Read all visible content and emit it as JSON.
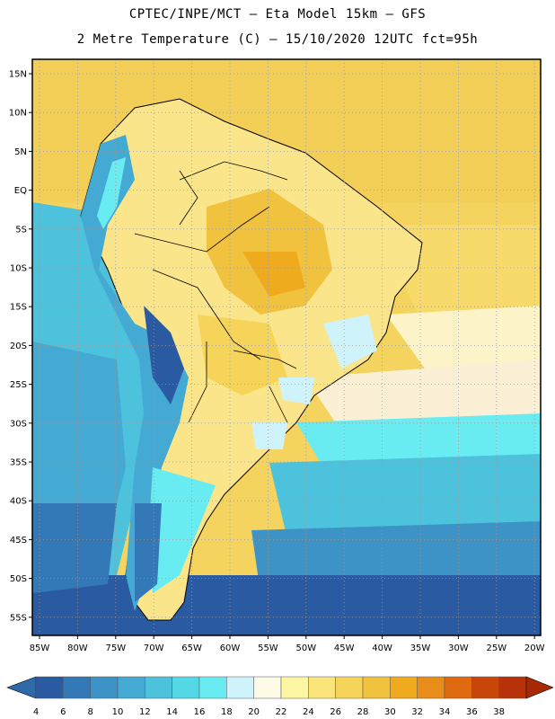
{
  "header": {
    "line1": "CPTEC/INPE/MCT –  Eta Model 15km – GFS",
    "line2": "2 Metre Temperature (C) – 15/10/2020 12UTC fct=95h"
  },
  "axes": {
    "lat_labels": [
      "15N",
      "10N",
      "5N",
      "EQ",
      "5S",
      "10S",
      "15S",
      "20S",
      "25S",
      "30S",
      "35S",
      "40S",
      "45S",
      "50S",
      "55S"
    ],
    "lon_labels": [
      "85W",
      "80W",
      "75W",
      "70W",
      "65W",
      "60W",
      "55W",
      "50W",
      "45W",
      "40W",
      "35W",
      "30W",
      "25W",
      "20W"
    ]
  },
  "colorbar": {
    "labels": [
      "4",
      "6",
      "8",
      "10",
      "12",
      "14",
      "16",
      "18",
      "20",
      "22",
      "24",
      "26",
      "28",
      "30",
      "32",
      "34",
      "36",
      "38"
    ],
    "colors": [
      "#2a5aa2",
      "#3379b8",
      "#3d93c6",
      "#44a9d3",
      "#4cc2dc",
      "#55d8e6",
      "#69ecf1",
      "#cff3fb",
      "#fdfbe6",
      "#fdf7a4",
      "#fbe57a",
      "#f6d45a",
      "#f0c23e",
      "#f0aa1e",
      "#e88c1a",
      "#e06a10",
      "#c8460a",
      "#b73208"
    ]
  },
  "map": {
    "ocean_color": "#f4d35e",
    "land_color": "#fbe58a"
  }
}
